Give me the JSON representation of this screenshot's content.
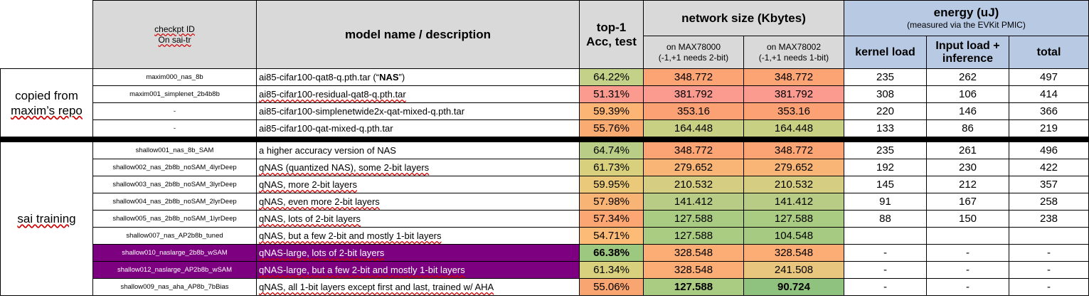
{
  "header": {
    "checkpoint": "checkpt ID",
    "checkpoint_sub": "On sai-tr",
    "model": "model name / description",
    "acc_line1": "top-1",
    "acc_line2": "Acc, test",
    "netsize": "network size (Kbytes)",
    "netsize_a_1": "on MAX78000",
    "netsize_a_2": "(-1,+1 needs 2-bit)",
    "netsize_b_1": "on MAX78002",
    "netsize_b_2": "(-1,+1 needs 1-bit)",
    "energy": "energy (uJ)",
    "energy_sub": "(measured via the EVKit PMIC)",
    "kernel": "kernel load",
    "input_1": "Input load +",
    "input_2": "inference",
    "total": "total"
  },
  "groups": {
    "maxim_1": "copied from",
    "maxim_2": "maxim’s repo",
    "sai": "sai training"
  },
  "rows": [
    {
      "id": "maxim000_nas_8b",
      "desc_pre": "ai85-cifar100-qat8-q.pth.tar (“",
      "desc_bold": "NAS",
      "desc_post": "”)",
      "acc": "64.22%",
      "sa": "348.772",
      "sb": "348.772",
      "k": "235",
      "inf": "262",
      "tot": "497"
    },
    {
      "id": "maxim001_simplenet_2b4b8b",
      "desc_pre": "ai85-cifar100-residual-qat8-q.pth.tar",
      "desc_bold": "",
      "desc_post": "",
      "acc": "51.31%",
      "sa": "381.792",
      "sb": "381.792",
      "k": "308",
      "inf": "106",
      "tot": "414"
    },
    {
      "id": "-",
      "desc_pre": "ai85-cifar100-simplenetwide2x-qat-mixed-q.pth.tar",
      "desc_bold": "",
      "desc_post": "",
      "acc": "59.39%",
      "sa": "353.16",
      "sb": "353.16",
      "k": "220",
      "inf": "146",
      "tot": "366"
    },
    {
      "id": "-",
      "desc_pre": "ai85-cifar100-qat-mixed-q.pth.tar",
      "desc_bold": "",
      "desc_post": "",
      "acc": "55.76%",
      "sa": "164.448",
      "sb": "164.448",
      "k": "133",
      "inf": "86",
      "tot": "219"
    },
    {
      "id": "shallow001_nas_8b_SAM",
      "desc_pre": "a higher accuracy version of NAS",
      "desc_bold": "",
      "desc_post": "",
      "acc": "64.74%",
      "sa": "348.772",
      "sb": "348.772",
      "k": "235",
      "inf": "261",
      "tot": "496"
    },
    {
      "id": "shallow002_nas_2b8b_noSAM_4lyrDeep",
      "desc_pre": "qNAS (quantized NAS), some 2-bit layers",
      "desc_bold": "",
      "desc_post": "",
      "acc": "61.73%",
      "sa": "279.652",
      "sb": "279.652",
      "k": "192",
      "inf": "230",
      "tot": "422"
    },
    {
      "id": "shallow003_nas_2b8b_noSAM_3lyrDeep",
      "desc_pre": "qNAS, more 2-bit layers",
      "desc_bold": "",
      "desc_post": "",
      "acc": "59.95%",
      "sa": "210.532",
      "sb": "210.532",
      "k": "145",
      "inf": "212",
      "tot": "357"
    },
    {
      "id": "shallow004_nas_2b8b_noSAM_2lyrDeep",
      "desc_pre": "qNAS, even more 2-bit layers",
      "desc_bold": "",
      "desc_post": "",
      "acc": "57.98%",
      "sa": "141.412",
      "sb": "141.412",
      "k": "91",
      "inf": "167",
      "tot": "258"
    },
    {
      "id": "shallow005_nas_2b8b_noSAM_1lyrDeep",
      "desc_pre": "qNAS, lots of 2-bit layers",
      "desc_bold": "",
      "desc_post": "",
      "acc": "57.34%",
      "sa": "127.588",
      "sb": "127.588",
      "k": "88",
      "inf": "150",
      "tot": "238"
    },
    {
      "id": "shallow007_nas_AP2b8b_tuned",
      "desc_pre": "qNAS, but a few 2-bit and mostly 1-bit layers",
      "desc_bold": "",
      "desc_post": "",
      "acc": "54.71%",
      "sa": "127.588",
      "sb": "104.548",
      "k": "",
      "inf": "",
      "tot": ""
    },
    {
      "id": "shallow010_naslarge_2b8b_wSAM",
      "desc_pre": "qNAS-large, lots of 2-bit layers",
      "desc_bold": "",
      "desc_post": "",
      "acc": "66.38%",
      "sa": "328.548",
      "sb": "328.548",
      "k": "-",
      "inf": "-",
      "tot": "-"
    },
    {
      "id": "shallow012_naslarge_AP2b8b_wSAM",
      "desc_pre": "qNAS-large, but a few 2-bit and mostly 1-bit layers",
      "desc_bold": "",
      "desc_post": "",
      "acc": "61.34%",
      "sa": "328.548",
      "sb": "241.508",
      "k": "-",
      "inf": "-",
      "tot": "-"
    },
    {
      "id": "shallow009_nas_aha_AP8b_7bBias",
      "desc_pre": "qNAS, all 1-bit layers except first and last, trained w/ AHA",
      "desc_bold": "",
      "desc_post": "",
      "acc": "55.06%",
      "sa": "127.588",
      "sb": "90.724",
      "k": "-",
      "inf": "-",
      "tot": "-"
    }
  ],
  "colors": {
    "acc": [
      "#c4d189",
      "#fb9a8e",
      "#fcb574",
      "#f9ab72",
      "#b9cd86",
      "#d9d07d",
      "#ebc97a",
      "#f7b474",
      "#fba673",
      "#fcbb76",
      "#9cc87f",
      "#d9d07d",
      "#f9a572"
    ],
    "size_a": [
      "#fca474",
      "#fb9a8e",
      "#fba174",
      "#c8d083",
      "#fca474",
      "#f9b575",
      "#d5cd81",
      "#b8cc85",
      "#aacb82",
      "#aacb82",
      "#fcac75",
      "#fcac75",
      "#aacb82"
    ],
    "size_b": [
      "#fca474",
      "#fb9a8e",
      "#fba174",
      "#c8d083",
      "#fca474",
      "#f9b575",
      "#d5cd81",
      "#b8cc85",
      "#aacb82",
      "#a6ca81",
      "#fcac75",
      "#e8c67d",
      "#8fc27e"
    ],
    "purple": "#7d0080"
  }
}
